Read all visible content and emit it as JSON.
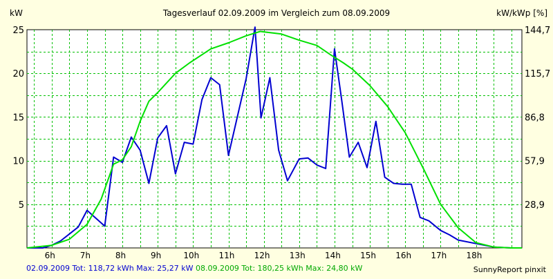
{
  "chart_data": {
    "type": "line",
    "title": "Tagesverlauf 02.09.2009 im Vergleich zum 08.09.2009",
    "ylabel_left": "kW",
    "ylabel_right": "kW/kWp [%]",
    "ylim_left": [
      0,
      25
    ],
    "ylim_right": [
      0,
      144.7
    ],
    "y_ticks_left": [
      5,
      10,
      15,
      20,
      25
    ],
    "y_ticks_right": [
      "28,9",
      "57,9",
      "86,8",
      "115,7",
      "144,7"
    ],
    "xlim_hours": [
      5.3,
      19.3
    ],
    "x_ticks": [
      "6h",
      "7h",
      "8h",
      "9h",
      "10h",
      "11h",
      "12h",
      "13h",
      "14h",
      "15h",
      "16h",
      "17h",
      "18h"
    ],
    "grid": true,
    "series": [
      {
        "name": "02.09.2009",
        "color": "#0000d0",
        "x": [
          5.3,
          5.75,
          6.0,
          6.25,
          6.5,
          6.75,
          7.0,
          7.25,
          7.5,
          7.75,
          8.0,
          8.25,
          8.5,
          8.75,
          9.0,
          9.25,
          9.5,
          9.75,
          10.0,
          10.25,
          10.5,
          10.75,
          11.0,
          11.25,
          11.5,
          11.75,
          11.92,
          12.17,
          12.42,
          12.67,
          13.0,
          13.25,
          13.5,
          13.75,
          14.0,
          14.2,
          14.42,
          14.67,
          14.92,
          15.17,
          15.42,
          15.67,
          15.92,
          16.17,
          16.42,
          16.67,
          17.0,
          17.25,
          17.5,
          18.0,
          18.5,
          19.0
        ],
        "y": [
          0,
          0,
          0.3,
          0.8,
          1.6,
          2.4,
          4.3,
          3.4,
          2.5,
          10.4,
          9.8,
          12.7,
          11.2,
          7.4,
          12.6,
          14.0,
          8.5,
          12.1,
          11.9,
          17.0,
          19.5,
          18.7,
          10.6,
          15.0,
          19.4,
          25.3,
          14.9,
          19.5,
          11.2,
          7.7,
          10.2,
          10.3,
          9.5,
          9.1,
          22.8,
          17.0,
          10.4,
          12.1,
          9.2,
          14.5,
          8.1,
          7.4,
          7.3,
          7.3,
          3.5,
          3.1,
          2.0,
          1.5,
          0.9,
          0.5,
          0.1,
          0
        ]
      },
      {
        "name": "08.09.2009",
        "color": "#00e000",
        "x": [
          5.3,
          6.0,
          6.5,
          7.0,
          7.4,
          7.75,
          8.0,
          8.25,
          8.5,
          8.75,
          9.0,
          9.5,
          9.9,
          10.5,
          11.0,
          11.5,
          11.9,
          12.5,
          13.0,
          13.5,
          13.9,
          14.25,
          14.5,
          15.0,
          15.5,
          16.0,
          16.5,
          17.0,
          17.5,
          18.0,
          18.5,
          19.0,
          19.3
        ],
        "y": [
          0,
          0.3,
          1.0,
          2.7,
          5.6,
          9.6,
          10.1,
          11.6,
          14.5,
          16.8,
          17.8,
          20.0,
          21.2,
          22.8,
          23.5,
          24.3,
          24.8,
          24.5,
          23.8,
          23.2,
          22.1,
          21.2,
          20.5,
          18.6,
          16.2,
          13.2,
          9.2,
          5.0,
          2.3,
          0.6,
          0.1,
          0,
          0
        ]
      }
    ]
  },
  "footer": {
    "series1_text": "02.09.2009 Tot: 118,72 kWh Max: 25,27 kW",
    "series2_text": "08.09.2009 Tot: 180,25 kWh Max: 24,80 kW",
    "credit": "SunnyReport pinxit"
  },
  "colors": {
    "background": "#ffffe1",
    "plot_background": "#ffffff",
    "grid": "#00c000",
    "series1": "#0000d0",
    "series2": "#00e000"
  }
}
